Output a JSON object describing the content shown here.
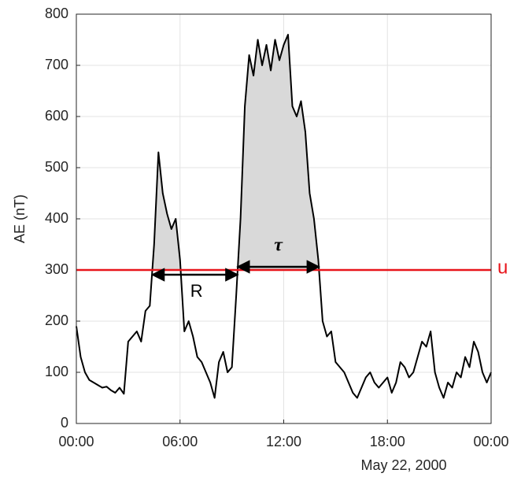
{
  "chart_data": {
    "type": "line",
    "ylabel": "AE (nT)",
    "date_label": "May 22, 2000",
    "x": [
      0,
      0.25,
      0.5,
      0.75,
      1,
      1.25,
      1.5,
      1.75,
      2,
      2.25,
      2.5,
      2.75,
      3,
      3.25,
      3.5,
      3.75,
      4,
      4.25,
      4.5,
      4.75,
      5,
      5.25,
      5.5,
      5.75,
      6,
      6.25,
      6.5,
      6.75,
      7,
      7.25,
      7.5,
      7.75,
      8,
      8.25,
      8.5,
      8.75,
      9,
      9.25,
      9.5,
      9.75,
      10,
      10.25,
      10.5,
      10.75,
      11,
      11.25,
      11.5,
      11.75,
      12,
      12.25,
      12.5,
      12.75,
      13,
      13.25,
      13.5,
      13.75,
      14,
      14.25,
      14.5,
      14.75,
      15,
      15.25,
      15.5,
      15.75,
      16,
      16.25,
      16.5,
      16.75,
      17,
      17.25,
      17.5,
      17.75,
      18,
      18.25,
      18.5,
      18.75,
      19,
      19.25,
      19.5,
      19.75,
      20,
      20.25,
      20.5,
      20.75,
      21,
      21.25,
      21.5,
      21.75,
      22,
      22.25,
      22.5,
      22.75,
      23,
      23.25,
      23.5,
      23.75,
      24
    ],
    "series": [
      {
        "name": "AE",
        "color": "#000000",
        "values": [
          190,
          130,
          100,
          85,
          80,
          75,
          70,
          72,
          65,
          60,
          70,
          58,
          160,
          170,
          180,
          160,
          220,
          230,
          350,
          530,
          450,
          410,
          380,
          400,
          320,
          180,
          200,
          170,
          130,
          120,
          100,
          80,
          50,
          120,
          140,
          100,
          110,
          250,
          400,
          620,
          720,
          680,
          750,
          700,
          740,
          690,
          750,
          710,
          740,
          760,
          620,
          600,
          630,
          570,
          450,
          400,
          320,
          200,
          170,
          180,
          120,
          110,
          100,
          80,
          60,
          50,
          70,
          90,
          100,
          80,
          70,
          80,
          90,
          60,
          80,
          120,
          110,
          90,
          100,
          130,
          160,
          150,
          180,
          100,
          70,
          50,
          80,
          70,
          100,
          90,
          130,
          110,
          160,
          140,
          100,
          80,
          100
        ]
      }
    ],
    "shade_color": "#d9d9d9",
    "threshold": {
      "value": 300,
      "label": "u",
      "color": "#e8141b"
    },
    "annotations": [
      "R",
      "τ"
    ],
    "xlim": [
      0,
      24
    ],
    "xticks": [
      {
        "value": 0,
        "label": "00:00"
      },
      {
        "value": 6,
        "label": "06:00"
      },
      {
        "value": 12,
        "label": "12:00"
      },
      {
        "value": 18,
        "label": "18:00"
      },
      {
        "value": 24,
        "label": "00:00"
      }
    ],
    "ylim": [
      0,
      800
    ],
    "yticks": [
      0,
      100,
      200,
      300,
      400,
      500,
      600,
      700,
      800
    ],
    "grid": true
  }
}
